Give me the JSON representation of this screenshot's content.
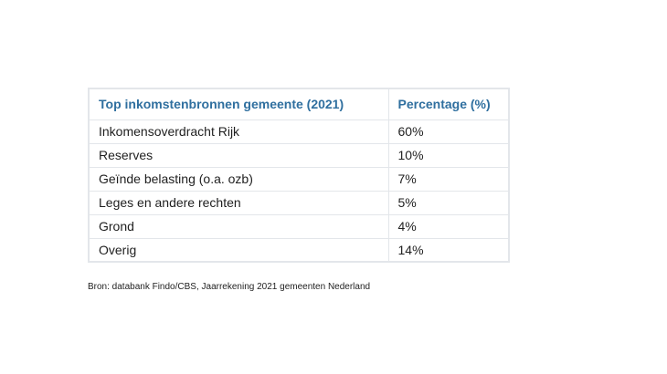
{
  "chart_data": {
    "type": "table",
    "columns": [
      "Top inkomstenbronnen gemeente (2021)",
      "Percentage (%)"
    ],
    "rows": [
      {
        "label": "Inkomensoverdracht Rijk",
        "value": "60%"
      },
      {
        "label": "Reserves",
        "value": "10%"
      },
      {
        "label": "Geïnde belasting (o.a. ozb)",
        "value": "7%"
      },
      {
        "label": "Leges en andere rechten",
        "value": "5%"
      },
      {
        "label": "Grond",
        "value": "4%"
      },
      {
        "label": "Overig",
        "value": "14%"
      }
    ],
    "source": "Bron: databank Findo/CBS, Jaarrekening 2021 gemeenten Nederland"
  },
  "colors": {
    "header_text": "#2f6f9f",
    "border": "#e3e6ea",
    "body_text": "#1f1f1f"
  }
}
